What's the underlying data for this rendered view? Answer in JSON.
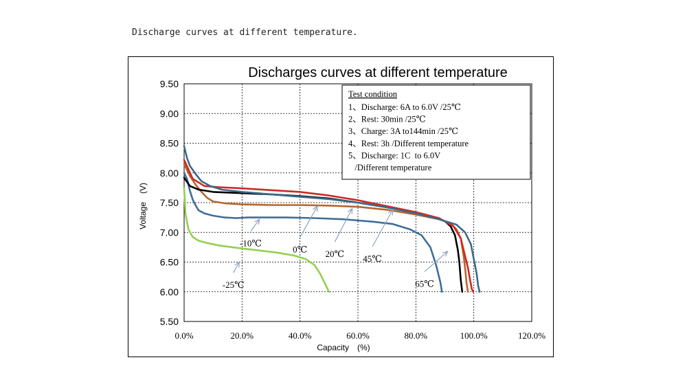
{
  "caption": "Discharge curves at different temperature.",
  "chart_data": {
    "type": "line",
    "title": "Discharges curves at different temperature",
    "xlabel": "Capacity　(%)",
    "ylabel": "Voltage　(V)",
    "xlim": [
      0,
      120
    ],
    "ylim": [
      5.5,
      9.5
    ],
    "grid": true,
    "x_ticks": [
      0,
      20,
      40,
      60,
      80,
      100,
      120
    ],
    "x_tick_labels": [
      "0.0%",
      "20.0%",
      "40.0%",
      "60.0%",
      "80.0%",
      "100.0%",
      "120.0%"
    ],
    "y_ticks": [
      5.5,
      6.0,
      6.5,
      7.0,
      7.5,
      8.0,
      8.5,
      9.0,
      9.5
    ],
    "y_tick_labels": [
      "5.50",
      "6.00",
      "6.50",
      "7.00",
      "7.50",
      "8.00",
      "8.50",
      "9.00",
      "9.50"
    ],
    "legend_box": {
      "title": "Test condition",
      "lines": [
        "1、Discharge: 6A to 6.0V /25℃",
        "2、Rest: 30min /25℃",
        "3、Charge: 3A to144min /25℃",
        "4、Rest: 3h /Different temperature",
        "5、Discharge: 1C  to 6.0V",
        "   /Different temperature"
      ]
    },
    "series": [
      {
        "label": "-25℃",
        "color": "#92d050",
        "x": [
          0,
          0.5,
          1.5,
          3,
          5,
          8,
          12,
          18,
          25,
          32,
          38,
          42,
          45,
          47,
          49,
          50
        ],
        "y": [
          7.75,
          7.3,
          7.05,
          6.92,
          6.86,
          6.82,
          6.78,
          6.74,
          6.7,
          6.66,
          6.61,
          6.55,
          6.45,
          6.3,
          6.1,
          6.0
        ]
      },
      {
        "label": "-10℃",
        "color": "#3e6d99",
        "x": [
          0,
          1,
          2,
          3,
          4,
          5,
          7,
          10,
          14,
          18,
          22,
          28,
          35,
          45,
          55,
          65,
          72,
          78,
          82,
          85,
          87,
          88.5,
          89
        ],
        "y": [
          8.0,
          7.9,
          7.7,
          7.55,
          7.45,
          7.37,
          7.32,
          7.28,
          7.25,
          7.24,
          7.25,
          7.25,
          7.25,
          7.24,
          7.22,
          7.18,
          7.14,
          7.05,
          6.95,
          6.75,
          6.45,
          6.15,
          6.0
        ]
      },
      {
        "label": "0℃",
        "color": "#b8652a",
        "x": [
          0,
          2,
          4,
          6,
          8,
          10,
          14,
          20,
          30,
          40,
          50,
          60,
          70,
          80,
          88,
          92,
          94,
          95.5,
          96.5,
          97,
          97.5,
          98
        ],
        "y": [
          8.15,
          7.95,
          7.8,
          7.68,
          7.58,
          7.52,
          7.49,
          7.47,
          7.46,
          7.46,
          7.45,
          7.43,
          7.38,
          7.3,
          7.22,
          7.15,
          7.05,
          6.9,
          6.6,
          6.4,
          6.15,
          6.0
        ]
      },
      {
        "label": "20℃",
        "color": "#000000",
        "x": [
          0,
          2,
          5,
          10,
          15,
          20,
          30,
          40,
          50,
          60,
          70,
          80,
          86,
          90,
          92,
          93.5,
          94.5,
          95,
          95.5,
          96
        ],
        "y": [
          7.92,
          7.78,
          7.72,
          7.68,
          7.67,
          7.66,
          7.64,
          7.61,
          7.57,
          7.5,
          7.42,
          7.33,
          7.26,
          7.19,
          7.1,
          6.95,
          6.7,
          6.5,
          6.2,
          6.0
        ]
      },
      {
        "label": "45℃",
        "color": "#cc2a24",
        "x": [
          0,
          3,
          7,
          12,
          20,
          30,
          40,
          50,
          60,
          70,
          80,
          88,
          93,
          95.5,
          97,
          98,
          98.7,
          99.3,
          99.8
        ],
        "y": [
          8.22,
          7.9,
          7.78,
          7.76,
          7.74,
          7.71,
          7.68,
          7.62,
          7.54,
          7.44,
          7.34,
          7.24,
          7.1,
          6.9,
          6.6,
          6.4,
          6.2,
          6.05,
          6.0
        ]
      },
      {
        "label": "65℃",
        "color": "#3a6a8c",
        "x": [
          0,
          1,
          2,
          4,
          6,
          9,
          13,
          20,
          30,
          40,
          50,
          60,
          70,
          80,
          88,
          94,
          97,
          99,
          100.2,
          101,
          101.5,
          102
        ],
        "y": [
          8.45,
          8.25,
          8.12,
          7.98,
          7.86,
          7.78,
          7.72,
          7.68,
          7.64,
          7.6,
          7.56,
          7.5,
          7.42,
          7.32,
          7.22,
          7.13,
          7.0,
          6.8,
          6.5,
          6.3,
          6.1,
          6.0
        ]
      }
    ],
    "annotations": [
      {
        "text": "-10℃",
        "x": 23,
        "y": 6.88,
        "arrow_to_x": 26,
        "arrow_to_y": 7.22
      },
      {
        "text": "0℃",
        "x": 40,
        "y": 6.78,
        "arrow_to_x": 46,
        "arrow_to_y": 7.44
      },
      {
        "text": "20℃",
        "x": 52,
        "y": 6.7,
        "arrow_to_x": 58,
        "arrow_to_y": 7.4
      },
      {
        "text": "45℃",
        "x": 65,
        "y": 6.62,
        "arrow_to_x": 72,
        "arrow_to_y": 7.38
      },
      {
        "text": "65℃",
        "x": 83,
        "y": 6.2,
        "arrow_to_x": 91,
        "arrow_to_y": 6.68
      },
      {
        "text": "-25℃",
        "x": 17,
        "y": 6.18,
        "arrow_to_x": 19,
        "arrow_to_y": 6.5
      }
    ]
  }
}
